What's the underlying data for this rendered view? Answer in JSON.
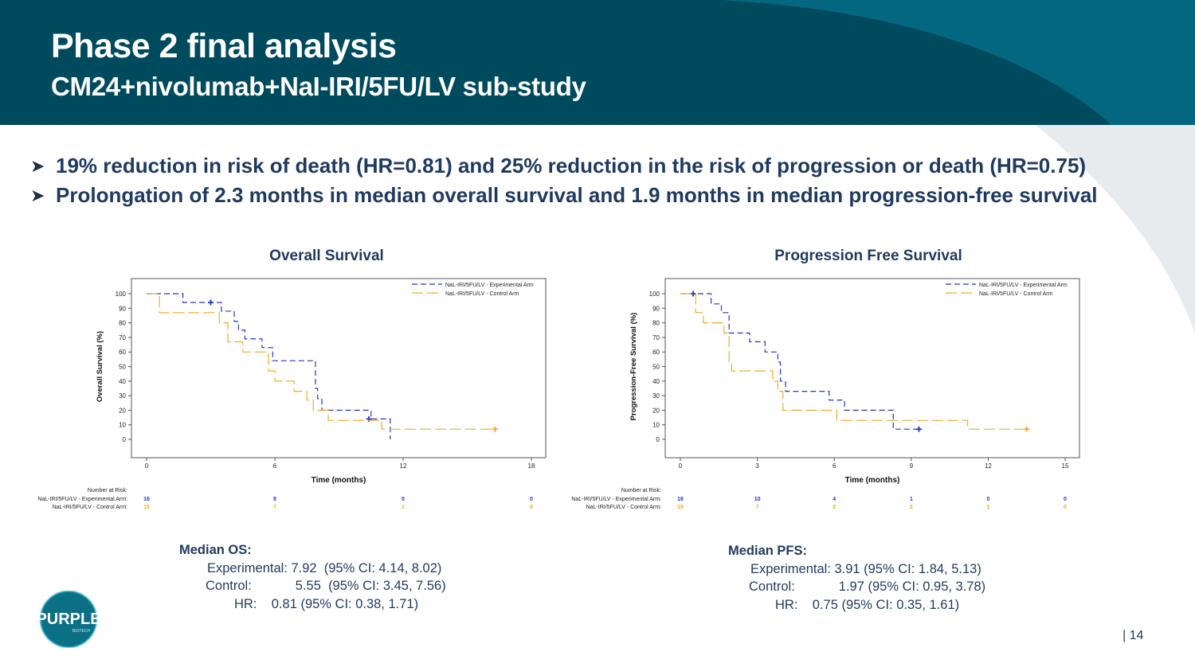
{
  "slide": {
    "title": "Phase 2 final analysis",
    "subtitle": "CM24+nivolumab+NaI-IRI/5FU/LV sub-study",
    "bullets": [
      "19% reduction in risk of death (HR=0.81) and 25% reduction in the risk of progression or death (HR=0.75)",
      "Prolongation of 2.3 months in median overall survival and 1.9 months in median progression-free survival"
    ],
    "page_number": "| 14",
    "colors": {
      "header": "#004a5e",
      "text": "#1f3a5f",
      "experimental": "#2733c9",
      "control": "#f0a92a"
    }
  },
  "logo": {
    "text": "PURPLE",
    "subtext": "BIOTECH"
  },
  "chart_data": [
    {
      "type": "line",
      "title": "Overall Survival",
      "xlabel": "Time (months)",
      "ylabel": "Overall Survival (%)",
      "xlim": [
        0,
        18
      ],
      "ylim": [
        0,
        100
      ],
      "xticks": [
        0,
        6,
        12,
        18
      ],
      "yticks": [
        0,
        10,
        20,
        30,
        40,
        50,
        60,
        70,
        80,
        90,
        100
      ],
      "legend_position": "top-right",
      "series": [
        {
          "name": "NaL-IRI/5FU/LV - Experimental Arm",
          "step": true,
          "x": [
            0,
            0.6,
            1.7,
            3.0,
            3.5,
            4.1,
            4.3,
            4.6,
            5.4,
            5.9,
            7.9,
            8.0,
            8.2,
            10.5,
            11.4,
            11.4
          ],
          "y": [
            100,
            100,
            94,
            94,
            88,
            81,
            75,
            69,
            63,
            54,
            35,
            28,
            20,
            14,
            14,
            0
          ],
          "censored": [
            [
              3.0,
              94
            ],
            [
              10.4,
              14
            ]
          ]
        },
        {
          "name": "NaL-IRI/5FU/LV - Control Arm",
          "step": true,
          "x": [
            0,
            0.6,
            3.4,
            3.8,
            4.4,
            4.5,
            5.7,
            6.0,
            6.9,
            7.5,
            7.8,
            8.5,
            11.0,
            12.0,
            16.3
          ],
          "y": [
            100,
            87,
            80,
            67,
            67,
            60,
            47,
            40,
            33,
            27,
            20,
            13,
            7,
            7,
            7
          ],
          "censored": [
            [
              16.3,
              7
            ]
          ]
        }
      ],
      "risk_table": {
        "title": "Number at Risk:",
        "x": [
          0,
          6,
          12,
          18
        ],
        "rows": [
          {
            "label": "NaL-IRI/5FU/LV - Experimental Arm:",
            "values": [
              "16",
              "8",
              "0",
              "0"
            ]
          },
          {
            "label": "NaL-IRI/5FU/LV - Control Arm:",
            "values": [
              "15",
              "7",
              "1",
              "0"
            ]
          }
        ]
      }
    },
    {
      "type": "line",
      "title": "Progression Free Survival",
      "xlabel": "Time (months)",
      "ylabel": "Progression-Free Survival (%)",
      "xlim": [
        0,
        15
      ],
      "ylim": [
        0,
        100
      ],
      "xticks": [
        0,
        3,
        6,
        9,
        12,
        15
      ],
      "yticks": [
        0,
        10,
        20,
        30,
        40,
        50,
        60,
        70,
        80,
        90,
        100
      ],
      "legend_position": "top-right",
      "series": [
        {
          "name": "NaL-IRI/5FU/LV - Experimental Arm",
          "step": true,
          "x": [
            0,
            1.2,
            1.6,
            1.9,
            2.7,
            3.3,
            3.8,
            3.9,
            4.1,
            4.5,
            5.8,
            6.4,
            8.3,
            9.3
          ],
          "y": [
            100,
            93,
            87,
            73,
            67,
            60,
            53,
            40,
            33,
            33,
            27,
            20,
            7,
            7
          ],
          "censored": [
            [
              0.5,
              100
            ],
            [
              9.3,
              7
            ]
          ]
        },
        {
          "name": "NaL-IRI/5FU/LV - Control Arm",
          "step": true,
          "x": [
            0,
            0.6,
            0.9,
            1.7,
            1.9,
            2.0,
            3.6,
            3.8,
            4.0,
            6.1,
            8.5,
            11.2,
            13.5
          ],
          "y": [
            100,
            87,
            80,
            73,
            53,
            47,
            40,
            33,
            20,
            13,
            13,
            7,
            7
          ],
          "censored": [
            [
              13.5,
              7
            ]
          ]
        }
      ],
      "risk_table": {
        "title": "Number at Risk:",
        "x": [
          0,
          3,
          6,
          9,
          12,
          15
        ],
        "rows": [
          {
            "label": "NaL-IRI/5FU/LV - Experimental Arm:",
            "values": [
              "16",
              "10",
              "4",
              "1",
              "0",
              "0"
            ]
          },
          {
            "label": "NaL-IRI/5FU/LV - Control Arm:",
            "values": [
              "15",
              "7",
              "2",
              "2",
              "1",
              "0"
            ]
          }
        ]
      }
    }
  ],
  "os_median": {
    "heading": "Median OS:",
    "rows": [
      "Experimental: 7.92  (95% CI: 4.14, 8.02)",
      "Control:            5.55  (95% CI: 3.45, 7.56)",
      "HR:    0.81 (95% CI: 0.38, 1.71)"
    ]
  },
  "pfs_median": {
    "heading": "Median PFS:",
    "rows": [
      "Experimental: 3.91 (95% CI: 1.84, 5.13)",
      "Control:            1.97 (95% CI: 0.95, 3.78)",
      "HR:    0.75 (95% CI: 0.35, 1.61)"
    ]
  }
}
